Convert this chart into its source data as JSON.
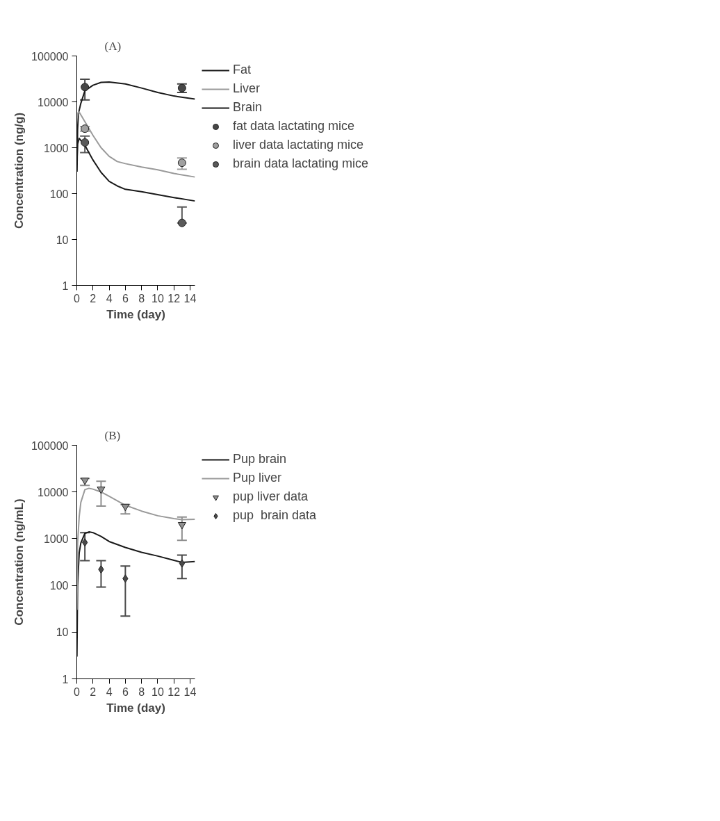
{
  "chart_data": [
    {
      "type": "scatter",
      "title": "(A)",
      "xlabel": "Time (day)",
      "ylabel": "Concentration (ng/g)",
      "log": "y",
      "xlim": [
        0,
        14.6
      ],
      "ylim": [
        1,
        100000
      ],
      "xticks": [
        0,
        2,
        4,
        6,
        8,
        10,
        12,
        14
      ],
      "yticks": [
        1,
        10,
        100,
        1000,
        10000,
        100000
      ],
      "grid": false,
      "legend": "right",
      "series": [
        {
          "name": "Fat",
          "type": "line",
          "color": "#1a1a1a",
          "line_style": "solid",
          "x": [
            0.03,
            0.1,
            0.2,
            0.5,
            1,
            2,
            3,
            4,
            6,
            8,
            10,
            12,
            14.6
          ],
          "values": [
            300,
            2500,
            5500,
            9300,
            17400,
            23000,
            26500,
            27000,
            24500,
            20000,
            16000,
            13400,
            11500
          ]
        },
        {
          "name": "Liver",
          "type": "line",
          "color": "#9a9a9a",
          "line_style": "solid",
          "x": [
            0.02,
            0.15,
            0.3,
            1,
            2,
            3,
            4,
            5,
            6,
            8,
            10,
            12,
            14.6
          ],
          "values": [
            4500,
            5800,
            6000,
            3700,
            1860,
            1000,
            650,
            500,
            450,
            380,
            330,
            275,
            230
          ]
        },
        {
          "name": "Brain",
          "type": "line",
          "color": "#1a1a1a",
          "line_style": "solid",
          "x": [
            0.02,
            0.1,
            0.3,
            1,
            2,
            3,
            4,
            5,
            6,
            8,
            10,
            12,
            14.6
          ],
          "values": [
            500,
            1200,
            1600,
            1130,
            540,
            290,
            185,
            147,
            124,
            110,
            95,
            82,
            69
          ]
        },
        {
          "name": "fat data lactating mice",
          "marker": "circle",
          "color": "#474747",
          "x": [
            1,
            13
          ],
          "values": [
            21000,
            20000
          ],
          "errors": [
            [
              11000,
              31000
            ],
            [
              16000,
              24500
            ]
          ]
        },
        {
          "name": "liver data lactating mice",
          "marker": "circle",
          "color": "#a0a0a0",
          "x": [
            1,
            13
          ],
          "values": [
            2600,
            470
          ],
          "errors": [
            [
              2300,
              2900
            ],
            [
              340,
              600
            ]
          ]
        },
        {
          "name": "brain data lactating mice",
          "marker": "circle",
          "color": "#5a5a5a",
          "x": [
            1,
            13
          ],
          "values": [
            1300,
            23
          ],
          "errors": [
            [
              780,
              1800
            ],
            [
              23,
              51
            ]
          ]
        }
      ]
    },
    {
      "type": "scatter",
      "title": "(B)",
      "xlabel": "Time (day)",
      "ylabel": "Concentration (ng/mL)",
      "log": "y",
      "xlim": [
        0,
        14.6
      ],
      "ylim": [
        1,
        100000
      ],
      "xticks": [
        0,
        2,
        4,
        6,
        8,
        10,
        12,
        14
      ],
      "yticks": [
        1,
        10,
        100,
        1000,
        10000,
        100000
      ],
      "grid": false,
      "legend": "right",
      "series": [
        {
          "name": "Pup brain",
          "type": "line",
          "color": "#1a1a1a",
          "line_style": "solid",
          "x": [
            0.02,
            0.1,
            0.3,
            0.5,
            1,
            1.5,
            2,
            3,
            4,
            6,
            8,
            10,
            12,
            13,
            14.6
          ],
          "values": [
            3,
            100,
            500,
            810,
            1300,
            1400,
            1350,
            1120,
            870,
            650,
            510,
            425,
            345,
            310,
            325
          ]
        },
        {
          "name": "Pup liver",
          "type": "line",
          "color": "#9a9a9a",
          "line_style": "solid",
          "x": [
            0.02,
            0.1,
            0.3,
            0.5,
            1,
            1.5,
            2,
            3,
            4,
            6,
            8,
            10,
            12,
            13,
            14.6
          ],
          "values": [
            30,
            800,
            3000,
            6000,
            11200,
            12000,
            11500,
            10000,
            8100,
            5200,
            3900,
            3100,
            2700,
            2550,
            2600
          ]
        },
        {
          "name": "pup liver data",
          "marker": "triangle",
          "color": "#8f8f8f",
          "x": [
            1,
            3,
            6,
            13
          ],
          "values": [
            17800,
            11500,
            4900,
            2000
          ],
          "errors": [
            [
              13800,
              19500
            ],
            [
              5000,
              17000
            ],
            [
              3400,
              5400
            ],
            [
              920,
              2900
            ]
          ]
        },
        {
          "name": "pup  brain data",
          "marker": "diamond",
          "color": "#4a4a4a",
          "x": [
            1,
            3,
            6,
            13
          ],
          "values": [
            830,
            220,
            140,
            295
          ],
          "errors": [
            [
              340,
              1350
            ],
            [
              92,
              340
            ],
            [
              22,
              260
            ],
            [
              140,
              445
            ]
          ]
        }
      ]
    }
  ]
}
